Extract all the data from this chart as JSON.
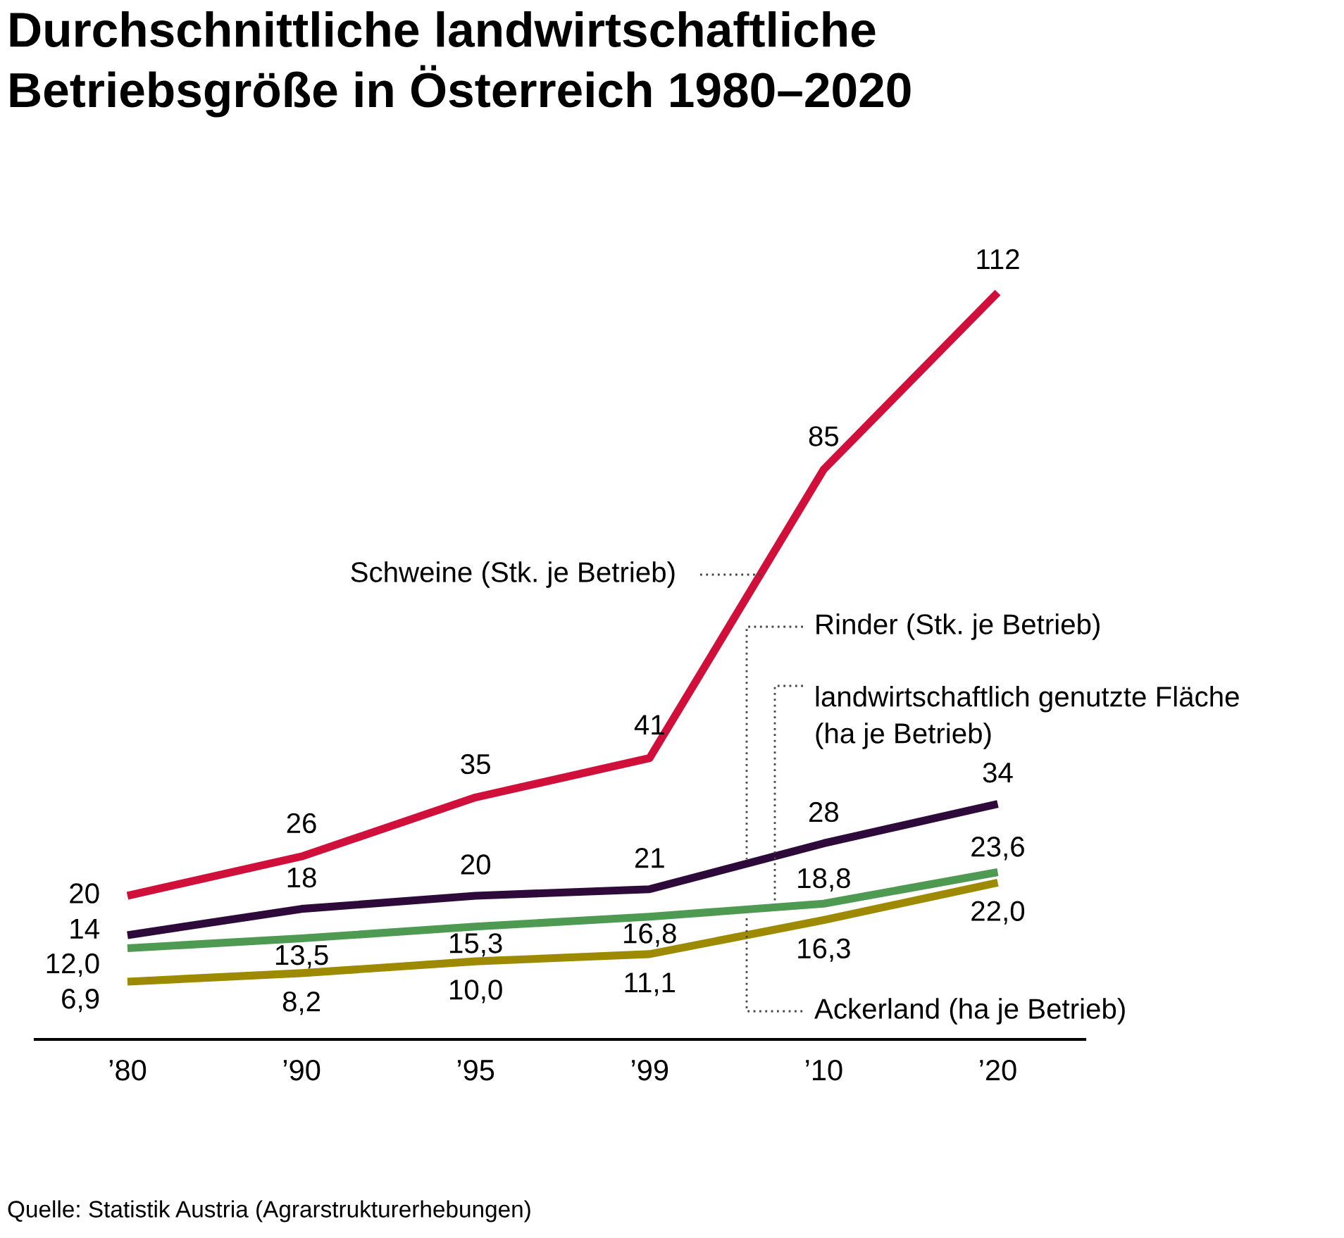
{
  "chart_data": {
    "type": "line",
    "title": "Durchschnittliche landwirtschaftliche\nBetriebsgröße in Österreich 1980–2020",
    "categories": [
      "’80",
      "’90",
      "’95",
      "’99",
      "’10",
      "’20"
    ],
    "series": [
      {
        "name": "Schweine (Stk. je Betrieb)",
        "color": "#d0103a",
        "values": [
          20,
          26,
          35,
          41,
          85,
          112
        ],
        "value_labels": [
          "20",
          "26",
          "35",
          "41",
          "85",
          "112"
        ]
      },
      {
        "name": "Rinder (Stk. je Betrieb)",
        "color": "#2e0a3a",
        "values": [
          14,
          18,
          20,
          21,
          28,
          34
        ],
        "value_labels": [
          "14",
          "18",
          "20",
          "21",
          "28",
          "34"
        ]
      },
      {
        "name": "landwirtschaftlich genutzte Fläche\n(ha je Betrieb)",
        "color": "#4f9a52",
        "values": [
          12.0,
          13.5,
          15.3,
          16.8,
          18.8,
          23.6
        ],
        "value_labels": [
          "12,0",
          "13,5",
          "15,3",
          "16,8",
          "18,8",
          "23,6"
        ]
      },
      {
        "name": "Ackerland (ha je Betrieb)",
        "color": "#9e8a00",
        "values": [
          6.9,
          8.2,
          10.0,
          11.1,
          16.3,
          22.0
        ],
        "value_labels": [
          "6,9",
          "8,2",
          "10,0",
          "11,1",
          "16,3",
          "22,0"
        ]
      }
    ],
    "tick_labels": "x",
    "grid": false,
    "legend": false,
    "annotations": [
      "Quelle: Statistik Austria (Agrarstrukturerhebungen)"
    ]
  }
}
